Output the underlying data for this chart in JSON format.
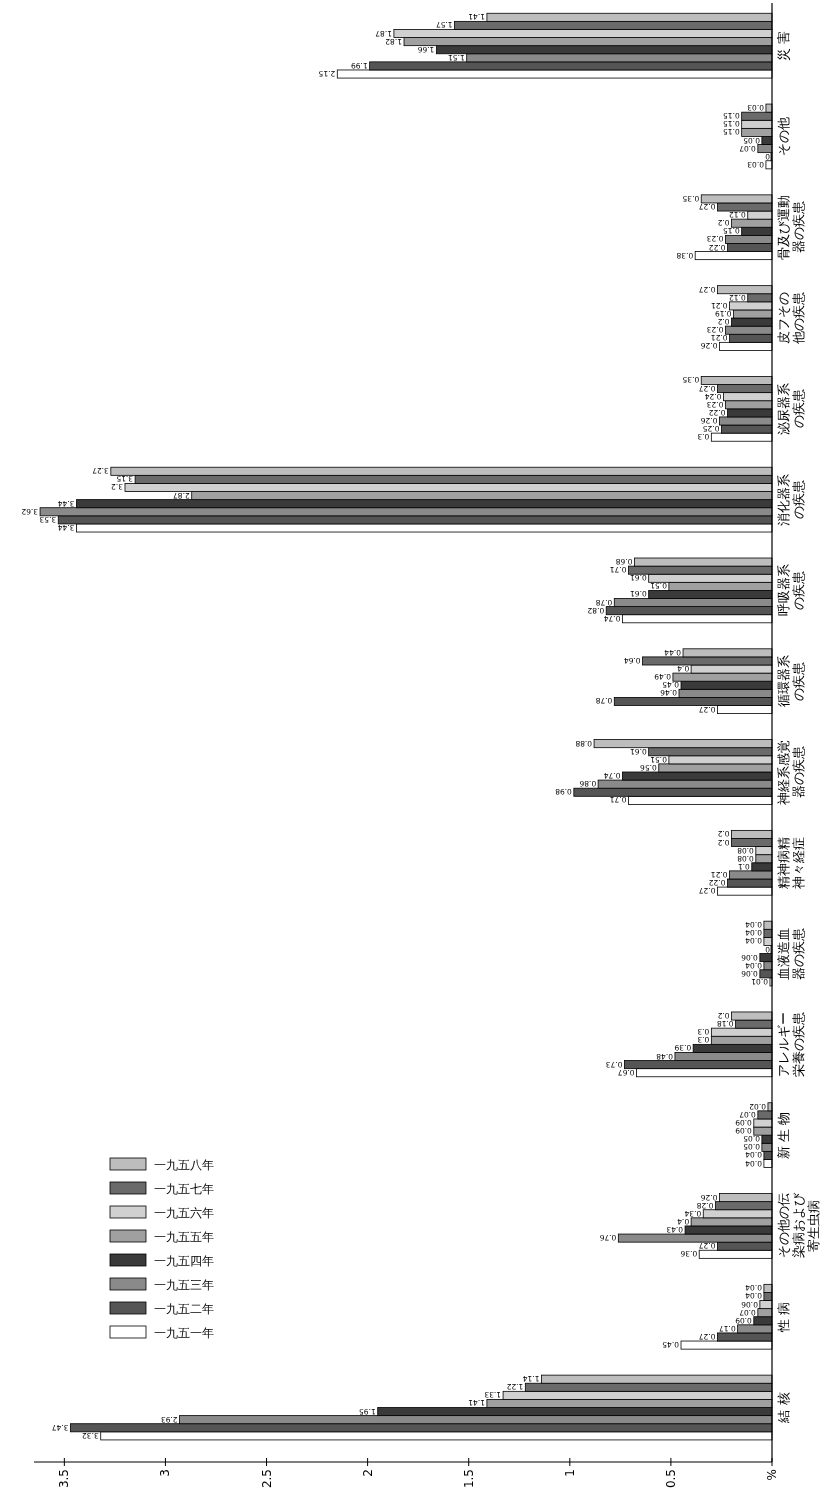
{
  "chart_data": {
    "type": "bar",
    "orientation": "horizontal",
    "categories": [
      "災 害",
      "その他",
      "骨及び運動器の疾患",
      "皮フその他の疾患",
      "泌尿器系の疾患",
      "消化器系の疾患",
      "呼吸器系の疾患",
      "循環器系の疾患",
      "神経系感覚器の疾患",
      "精神病精神々経症",
      "血液造血器の疾患",
      "アレルギー栄養の疾患",
      "新 生 物",
      "その他の伝染病および寄生虫病",
      "性 病",
      "結 核"
    ],
    "series": [
      {
        "name": "一九五一年",
        "color": "#ffffff",
        "values": [
          2.15,
          0.03,
          0.38,
          0.26,
          0.3,
          3.44,
          0.74,
          0.27,
          0.71,
          0.27,
          0.01,
          0.67,
          0.04,
          0.36,
          0.45,
          3.32
        ]
      },
      {
        "name": "一九五二年",
        "color": "#555555",
        "values": [
          1.99,
          0,
          0.22,
          0.21,
          0.25,
          3.53,
          0.82,
          0.78,
          0.98,
          0.22,
          0.06,
          0.73,
          0.04,
          0.27,
          0.27,
          3.47
        ]
      },
      {
        "name": "一九五三年",
        "color": "#8a8a8a",
        "values": [
          1.51,
          0.07,
          0.23,
          0.23,
          0.26,
          3.62,
          0.78,
          0.46,
          0.86,
          0.21,
          0.04,
          0.48,
          0.05,
          0.76,
          0.17,
          2.93
        ]
      },
      {
        "name": "一九五四年",
        "color": "#3a3a3a",
        "values": [
          1.66,
          0.05,
          0.15,
          0.2,
          0.22,
          3.44,
          0.61,
          0.45,
          0.74,
          0.1,
          0.06,
          0.39,
          0.05,
          0.43,
          0.09,
          1.95
        ]
      },
      {
        "name": "一九五五年",
        "color": "#a0a0a0",
        "values": [
          1.82,
          0.15,
          0.2,
          0.19,
          0.23,
          2.87,
          0.51,
          0.49,
          0.56,
          0.08,
          0,
          0.3,
          0.09,
          0.4,
          0.07,
          1.41
        ]
      },
      {
        "name": "一九五六年",
        "color": "#d0d0d0",
        "values": [
          1.87,
          0.15,
          0.12,
          0.21,
          0.24,
          3.2,
          0.61,
          0.4,
          0.51,
          0.08,
          0.04,
          0.3,
          0.09,
          0.34,
          0.06,
          1.33
        ]
      },
      {
        "name": "一九五七年",
        "color": "#6a6a6a",
        "values": [
          1.57,
          0.15,
          0.27,
          0.12,
          0.27,
          3.15,
          0.71,
          0.64,
          0.61,
          0.2,
          0.04,
          0.18,
          0.07,
          0.28,
          0.04,
          1.22
        ]
      },
      {
        "name": "一九五八年",
        "color": "#bdbdbd",
        "values": [
          1.41,
          0.03,
          0.35,
          0.27,
          0.35,
          3.27,
          0.68,
          0.44,
          0.88,
          0.2,
          0.04,
          0.2,
          0.02,
          0.26,
          0.04,
          1.14
        ]
      }
    ],
    "xlim": [
      3.65,
      0
    ],
    "xticks": [
      3.5,
      3,
      2.5,
      2,
      1.5,
      1,
      0.5,
      {
        "value": 0,
        "label": "%"
      }
    ],
    "data_labels": true,
    "legend": "bottom left"
  }
}
